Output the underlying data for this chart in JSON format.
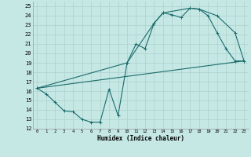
{
  "xlabel": "Humidex (Indice chaleur)",
  "xlim": [
    -0.5,
    23.5
  ],
  "ylim": [
    12,
    25.5
  ],
  "yticks": [
    12,
    13,
    14,
    15,
    16,
    17,
    18,
    19,
    20,
    21,
    22,
    23,
    24,
    25
  ],
  "xticks": [
    0,
    1,
    2,
    3,
    4,
    5,
    6,
    7,
    8,
    9,
    10,
    11,
    12,
    13,
    14,
    15,
    16,
    17,
    18,
    19,
    20,
    21,
    22,
    23
  ],
  "bg_color": "#c5e8e5",
  "grid_color": "#b0d4d0",
  "line_color": "#1a6b6b",
  "line1_x": [
    0,
    1,
    2,
    3,
    4,
    5,
    6,
    7,
    8,
    9,
    10,
    11,
    12,
    13,
    14,
    15,
    16,
    17,
    18,
    19,
    20,
    21,
    22,
    23
  ],
  "line1_y": [
    16.3,
    15.7,
    14.8,
    13.9,
    13.8,
    13.0,
    12.7,
    12.7,
    16.2,
    13.4,
    19.0,
    21.0,
    20.5,
    23.2,
    24.3,
    24.1,
    23.8,
    24.8,
    24.7,
    24.0,
    22.2,
    20.5,
    19.2,
    19.2
  ],
  "line2_x": [
    0,
    23
  ],
  "line2_y": [
    16.3,
    19.2
  ],
  "line3_x": [
    0,
    10,
    13,
    14,
    17,
    18,
    20,
    22,
    23
  ],
  "line3_y": [
    16.3,
    19.0,
    23.2,
    24.3,
    24.8,
    24.7,
    24.0,
    22.2,
    19.2
  ]
}
